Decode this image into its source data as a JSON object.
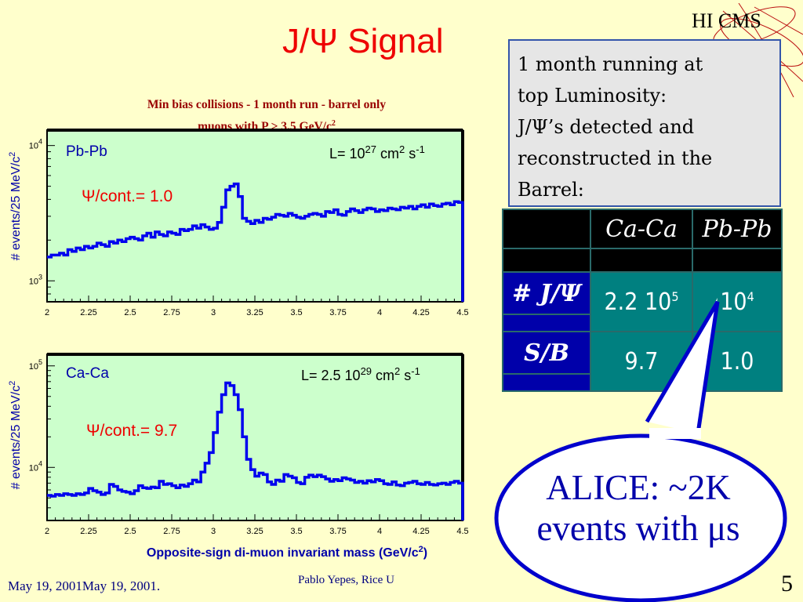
{
  "slide": {
    "title": "J/Ψ Signal",
    "logo_text": "HI CMS",
    "subtitle_line1": "Min bias collisions - 1 month run - barrel only",
    "subtitle_line2": "muons with P > 3.5 GeV/c",
    "footer_date": "May 19, 2001May 19, 2001.",
    "footer_author": "Pablo Yepes, Rice U",
    "page_number": "5"
  },
  "info_box": {
    "lines": [
      "1 month running at",
      "top Luminosity:",
      " J/Ψ’s detected and",
      "reconstructed in the",
      "Barrel:"
    ]
  },
  "table": {
    "headers": [
      "",
      "Ca-Ca",
      "Pb-Pb"
    ],
    "rows": [
      {
        "label": "# J/Ψ",
        "ca": "2.2 10",
        "ca_exp": "5",
        "pb": "10",
        "pb_exp": "4"
      },
      {
        "label": "S/B",
        "ca": "9.7",
        "ca_exp": "",
        "pb": "1.0",
        "pb_exp": ""
      }
    ]
  },
  "bubble": {
    "line1": "ALICE: ~2K",
    "line2": "events with μs"
  },
  "colors": {
    "background": "#ffffcc",
    "plot_bg": "#ccffcc",
    "histogram": "#0000ee",
    "title": "#ee0000",
    "bubble": "#0000aa"
  },
  "chart_data": [
    {
      "type": "line",
      "panel": "Pb-Pb",
      "x_axis": "Opposite-sign di-muon invariant mass (GeV/c2)",
      "ylabel": "# events/25 MeV/c2",
      "xlim": [
        2,
        4.5
      ],
      "yscale": "log",
      "ylim": [
        700,
        13000
      ],
      "xticks": [
        "2",
        "2.25",
        "2.5",
        "2.75",
        "3",
        "3.25",
        "3.5",
        "3.75",
        "4",
        "4.25",
        "4.5"
      ],
      "yticks": [
        {
          "base": "10",
          "exp": "3",
          "value": 1000
        },
        {
          "base": "10",
          "exp": "4",
          "value": 10000
        }
      ],
      "annotations": {
        "luminosity": "L= 10",
        "lum_exp": "27",
        "lum_unit": " cm",
        "unit_exp": "2",
        "unit_s": " s",
        "s_exp": "-1",
        "ratio": "Ψ/cont.= 1.0"
      },
      "x": [
        2.0,
        2.025,
        2.05,
        2.075,
        2.1,
        2.125,
        2.15,
        2.175,
        2.2,
        2.225,
        2.25,
        2.275,
        2.3,
        2.325,
        2.35,
        2.375,
        2.4,
        2.425,
        2.45,
        2.475,
        2.5,
        2.525,
        2.55,
        2.575,
        2.6,
        2.625,
        2.65,
        2.675,
        2.7,
        2.725,
        2.75,
        2.775,
        2.8,
        2.825,
        2.85,
        2.875,
        2.9,
        2.925,
        2.95,
        2.975,
        3.0,
        3.025,
        3.05,
        3.075,
        3.1,
        3.125,
        3.15,
        3.175,
        3.2,
        3.225,
        3.25,
        3.275,
        3.3,
        3.325,
        3.35,
        3.375,
        3.4,
        3.425,
        3.45,
        3.475,
        3.5,
        3.525,
        3.55,
        3.575,
        3.6,
        3.625,
        3.65,
        3.675,
        3.7,
        3.725,
        3.75,
        3.775,
        3.8,
        3.825,
        3.85,
        3.875,
        3.9,
        3.925,
        3.95,
        3.975,
        4.0,
        4.025,
        4.05,
        4.075,
        4.1,
        4.125,
        4.15,
        4.175,
        4.2,
        4.225,
        4.25,
        4.275,
        4.3,
        4.325,
        4.35,
        4.375,
        4.4,
        4.425,
        4.45,
        4.475
      ],
      "y": [
        1500,
        1550,
        1550,
        1600,
        1550,
        1700,
        1650,
        1750,
        1700,
        1800,
        1750,
        1800,
        1900,
        1850,
        1800,
        1950,
        1900,
        2000,
        1950,
        2050,
        2100,
        2050,
        2000,
        2150,
        2250,
        2100,
        2300,
        2200,
        2150,
        2300,
        2250,
        2200,
        2400,
        2350,
        2400,
        2550,
        2450,
        2600,
        2500,
        2400,
        2450,
        2700,
        3500,
        4700,
        5000,
        5200,
        4200,
        2900,
        2750,
        2650,
        2800,
        2700,
        2900,
        2850,
        2950,
        3100,
        3050,
        3000,
        3150,
        3050,
        2950,
        2900,
        3000,
        3100,
        3150,
        3100,
        3000,
        3250,
        3200,
        3350,
        3100,
        3050,
        3250,
        3400,
        3300,
        3200,
        3350,
        3450,
        3400,
        3250,
        3350,
        3300,
        3450,
        3400,
        3350,
        3500,
        3450,
        3550,
        3400,
        3550,
        3650,
        3500,
        3700,
        3600,
        3550,
        3700,
        3750,
        3650,
        3850,
        3800
      ]
    },
    {
      "type": "line",
      "panel": "Ca-Ca",
      "x_axis": "Opposite-sign di-muon invariant mass (GeV/c2)",
      "ylabel": "# events/25 MeV/c2",
      "xlim": [
        2,
        4.5
      ],
      "yscale": "log",
      "ylim": [
        3000,
        130000
      ],
      "xticks": [
        "2",
        "2.25",
        "2.5",
        "2.75",
        "3",
        "3.25",
        "3.5",
        "3.75",
        "4",
        "4.25",
        "4.5"
      ],
      "yticks": [
        {
          "base": "10",
          "exp": "4",
          "value": 10000
        },
        {
          "base": "10",
          "exp": "5",
          "value": 100000
        }
      ],
      "annotations": {
        "luminosity": "L= 2.5 10",
        "lum_exp": "29",
        "lum_unit": " cm",
        "unit_exp": "2",
        "unit_s": " s",
        "s_exp": "-1",
        "ratio": "Ψ/cont.= 9.7"
      },
      "x": [
        2.0,
        2.025,
        2.05,
        2.075,
        2.1,
        2.125,
        2.15,
        2.175,
        2.2,
        2.225,
        2.25,
        2.275,
        2.3,
        2.325,
        2.35,
        2.375,
        2.4,
        2.425,
        2.45,
        2.475,
        2.5,
        2.525,
        2.55,
        2.575,
        2.6,
        2.625,
        2.65,
        2.675,
        2.7,
        2.725,
        2.75,
        2.775,
        2.8,
        2.825,
        2.85,
        2.875,
        2.9,
        2.925,
        2.95,
        2.975,
        3.0,
        3.025,
        3.05,
        3.075,
        3.1,
        3.125,
        3.15,
        3.175,
        3.2,
        3.225,
        3.25,
        3.275,
        3.3,
        3.325,
        3.35,
        3.375,
        3.4,
        3.425,
        3.45,
        3.475,
        3.5,
        3.525,
        3.55,
        3.575,
        3.6,
        3.625,
        3.65,
        3.675,
        3.7,
        3.725,
        3.75,
        3.775,
        3.8,
        3.825,
        3.85,
        3.875,
        3.9,
        3.925,
        3.95,
        3.975,
        4.0,
        4.025,
        4.05,
        4.075,
        4.1,
        4.125,
        4.15,
        4.175,
        4.2,
        4.225,
        4.25,
        4.275,
        4.3,
        4.325,
        4.35,
        4.375,
        4.4,
        4.425,
        4.45,
        4.475
      ],
      "y": [
        5300,
        5200,
        5400,
        5300,
        5500,
        5400,
        5300,
        5500,
        5400,
        5600,
        6200,
        5900,
        5700,
        5400,
        5600,
        6800,
        6500,
        6000,
        5800,
        5700,
        5500,
        5900,
        6600,
        6300,
        6200,
        6400,
        6300,
        7300,
        6800,
        6900,
        6600,
        6300,
        6700,
        6500,
        6900,
        7500,
        7200,
        9000,
        11000,
        14000,
        22000,
        35000,
        52000,
        68000,
        64000,
        52000,
        37000,
        20000,
        12000,
        9500,
        8200,
        8800,
        8500,
        7200,
        6800,
        7500,
        7300,
        8500,
        8200,
        7900,
        7100,
        6900,
        8000,
        8400,
        8100,
        8400,
        8100,
        7700,
        7300,
        7600,
        7400,
        7900,
        7700,
        7500,
        7100,
        7300,
        7000,
        7400,
        7200,
        7600,
        7400,
        6900,
        6800,
        7200,
        6700,
        6600,
        7000,
        7100,
        7300,
        6900,
        6800,
        7100,
        6800,
        6700,
        6900,
        7000,
        6800,
        7100,
        7300,
        7000
      ]
    }
  ]
}
